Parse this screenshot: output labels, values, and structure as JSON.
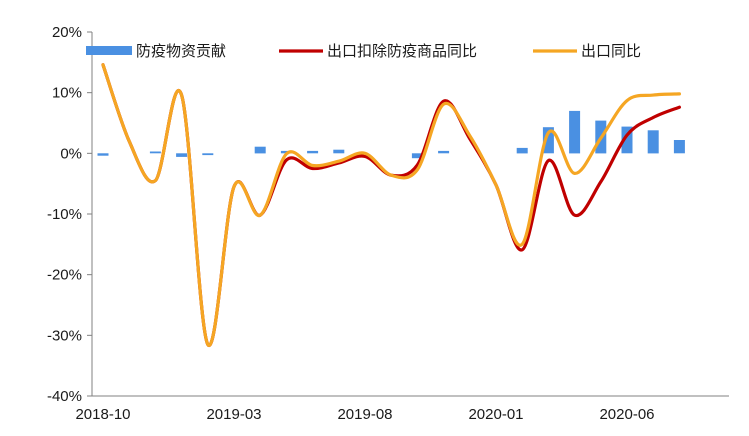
{
  "chart_data": {
    "type": "bar+line",
    "title": "",
    "xlabel": "",
    "ylabel": "",
    "ylim": [
      -40,
      20
    ],
    "y_ticks": [
      "20%",
      "10%",
      "0%",
      "-10%",
      "-20%",
      "-30%",
      "-40%"
    ],
    "y_tick_values": [
      20,
      10,
      0,
      -10,
      -20,
      -30,
      -40
    ],
    "categories": [
      "2018-10",
      "2018-11",
      "2018-12",
      "2019-01",
      "2019-02",
      "2019-03",
      "2019-04",
      "2019-05",
      "2019-06",
      "2019-07",
      "2019-08",
      "2019-09",
      "2019-10",
      "2019-11",
      "2019-12",
      "2020-01",
      "2020-02",
      "2020-03",
      "2020-04",
      "2020-05",
      "2020-06",
      "2020-07",
      "2020-08",
      "2020-09"
    ],
    "x_tick_labels": [
      {
        "index": 0,
        "label": "2018-10"
      },
      {
        "index": 5,
        "label": "2019-03"
      },
      {
        "index": 10,
        "label": "2019-08"
      },
      {
        "index": 15,
        "label": "2020-01"
      },
      {
        "index": 20,
        "label": "2020-06"
      }
    ],
    "legend_position": "top",
    "grid": false,
    "series": [
      {
        "name": "防疫物资贡献",
        "kind": "bar",
        "color": "#4a90e2",
        "values": [
          -0.4,
          0.0,
          0.3,
          -0.6,
          -0.3,
          0.0,
          1.1,
          0.4,
          0.4,
          0.6,
          0.0,
          0.0,
          -0.8,
          0.4,
          0.0,
          0.0,
          0.9,
          4.3,
          7.0,
          5.4,
          4.4,
          3.8,
          2.2,
          null
        ]
      },
      {
        "name": "出口扣除防疫商品同比",
        "kind": "line",
        "color": "#c00000",
        "values": [
          14.6,
          2.0,
          -4.5,
          9.6,
          -31.5,
          -5.5,
          -10.2,
          -1.1,
          -2.5,
          -1.6,
          -0.5,
          -3.6,
          -1.9,
          8.6,
          2.4,
          -5.2,
          -15.9,
          -1.2,
          -10.2,
          -4.7,
          3.0,
          5.9,
          7.6,
          null
        ]
      },
      {
        "name": "出口同比",
        "kind": "line",
        "color": "#f5a623",
        "values": [
          14.6,
          2.0,
          -4.5,
          9.6,
          -31.5,
          -5.5,
          -10.2,
          -0.1,
          -2.0,
          -1.3,
          0.0,
          -3.6,
          -2.7,
          8.1,
          2.9,
          -5.2,
          -15.0,
          3.4,
          -3.3,
          2.5,
          8.7,
          9.6,
          9.8,
          null
        ]
      }
    ]
  }
}
